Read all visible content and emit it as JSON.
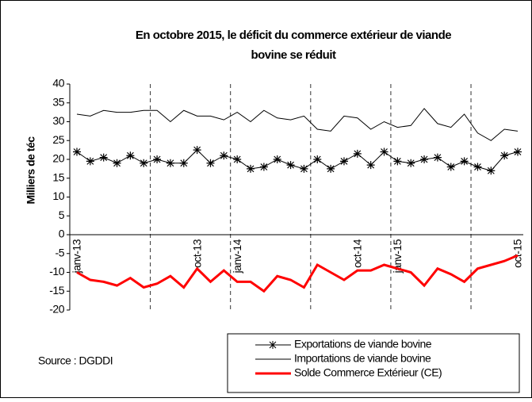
{
  "chart_data": {
    "type": "line",
    "title": "En octobre 2015, le déficit du commerce extérieur de viande bovine se réduit",
    "y_label": "Milliers de téc",
    "source": "Source : DGDDI",
    "categories": [
      "janv-13",
      null,
      null,
      null,
      null,
      null,
      null,
      null,
      null,
      "oct-13",
      null,
      null,
      "janv-14",
      null,
      null,
      null,
      null,
      null,
      null,
      null,
      null,
      "oct-14",
      null,
      null,
      "janv-15",
      null,
      null,
      null,
      null,
      null,
      null,
      null,
      null,
      "oct-15"
    ],
    "series": [
      {
        "name": "Exportations de viande bovine",
        "color": "#000000",
        "marker": "star",
        "values": [
          22,
          19.5,
          20.5,
          19,
          21,
          19,
          20,
          19,
          19,
          22.5,
          19,
          21,
          20,
          17.5,
          18,
          20,
          18.5,
          17.5,
          20,
          17.5,
          19.5,
          21.5,
          18.5,
          22,
          19.5,
          19,
          20,
          20.5,
          18,
          19.5,
          18,
          17,
          21,
          22
        ]
      },
      {
        "name": "Importations de viande bovine",
        "color": "#000000",
        "values": [
          32,
          31.5,
          33,
          32.5,
          32.5,
          33,
          33,
          30,
          33,
          31.5,
          31.5,
          30.5,
          32.5,
          30,
          33,
          31,
          30.5,
          31.5,
          28,
          27.5,
          31.5,
          31,
          28,
          30,
          28.5,
          29,
          33.5,
          29.5,
          28.5,
          32,
          27,
          25,
          28,
          27.5
        ]
      },
      {
        "name": "Solde Commerce Extérieur (CE)",
        "color": "#ff0000",
        "values": [
          -10,
          -12,
          -12.5,
          -13.5,
          -11.5,
          -14,
          -13,
          -11,
          -14,
          -9,
          -12.5,
          -9.5,
          -12.5,
          -12.5,
          -15,
          -11,
          -12,
          -14,
          -8,
          -10,
          -12,
          -9.5,
          -9.5,
          -8,
          -9,
          -10,
          -13.5,
          -9,
          -10.5,
          -12.5,
          -9,
          -8,
          -7,
          -5.5
        ]
      }
    ],
    "ylim": [
      -20,
      40
    ],
    "yticks": [
      -20,
      -15,
      -10,
      -5,
      0,
      5,
      10,
      15,
      20,
      25,
      30,
      35,
      40
    ],
    "legend_position": "bottom-right"
  }
}
